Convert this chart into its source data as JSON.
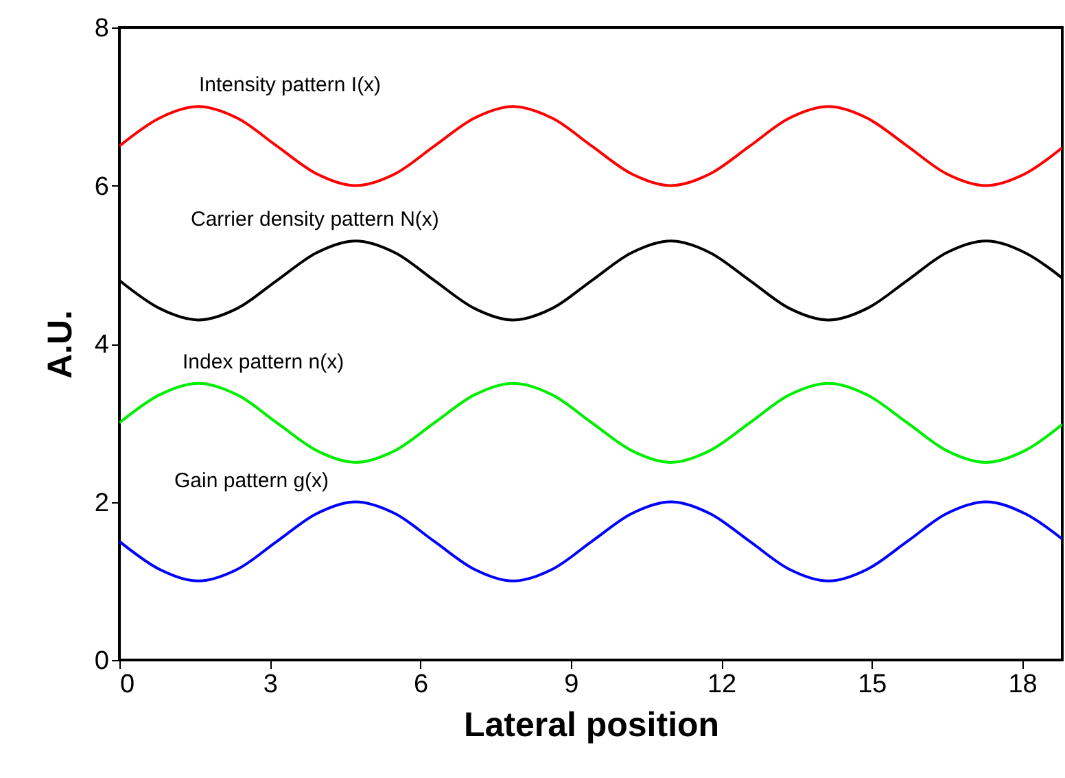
{
  "chart_data": {
    "type": "line",
    "xlabel": "Lateral position",
    "ylabel": "A.U.",
    "x": [
      0,
      0.79,
      1.57,
      2.36,
      3.14,
      3.93,
      4.71,
      5.5,
      6.28,
      7.07,
      7.85,
      8.64,
      9.42,
      10.21,
      11.0,
      11.78,
      12.57,
      13.35,
      14.14,
      14.92,
      15.71,
      16.49,
      17.28,
      18.06,
      18.8
    ],
    "series": [
      {
        "name": "Intensity pattern I(x)",
        "color": "#ff0000",
        "values": [
          6.5,
          6.85,
          7,
          6.85,
          6.5,
          6.15,
          6,
          6.15,
          6.5,
          6.85,
          7,
          6.85,
          6.5,
          6.15,
          6,
          6.15,
          6.5,
          6.85,
          7,
          6.85,
          6.5,
          6.15,
          6,
          6.15,
          6.48
        ]
      },
      {
        "name": "Carrier density pattern N(x)",
        "color": "#000000",
        "values": [
          4.8,
          4.45,
          4.3,
          4.45,
          4.8,
          5.15,
          5.3,
          5.15,
          4.8,
          4.45,
          4.3,
          4.45,
          4.8,
          5.15,
          5.3,
          5.15,
          4.8,
          4.45,
          4.3,
          4.45,
          4.8,
          5.15,
          5.3,
          5.15,
          4.83
        ]
      },
      {
        "name": "Index pattern n(x)",
        "color": "#00ee00",
        "values": [
          3,
          3.35,
          3.5,
          3.35,
          3,
          2.65,
          2.5,
          2.65,
          3,
          3.35,
          3.5,
          3.35,
          3,
          2.65,
          2.5,
          2.65,
          3,
          3.35,
          3.5,
          3.35,
          3,
          2.65,
          2.5,
          2.65,
          2.98
        ]
      },
      {
        "name": "Gain pattern g(x)",
        "color": "#0000ff",
        "values": [
          1.5,
          1.15,
          1,
          1.15,
          1.5,
          1.85,
          2,
          1.85,
          1.5,
          1.15,
          1,
          1.15,
          1.5,
          1.85,
          2,
          1.85,
          1.5,
          1.15,
          1,
          1.15,
          1.5,
          1.85,
          2,
          1.85,
          1.53
        ]
      }
    ],
    "xlim": [
      0,
      18.8
    ],
    "xticks": [
      0,
      3,
      6,
      9,
      12,
      15,
      18
    ],
    "ylim": [
      0,
      8
    ],
    "yticks": [
      0,
      2,
      4,
      6,
      8
    ],
    "grid": false,
    "marker": "none",
    "line_style": "solid"
  }
}
